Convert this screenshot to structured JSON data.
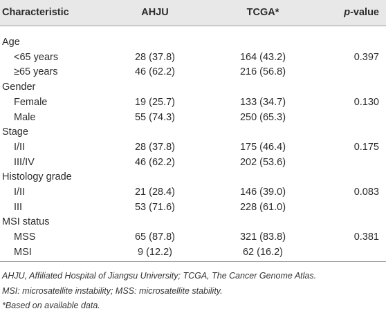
{
  "table": {
    "header": [
      "Characteristic",
      "AHJU",
      "TCGA*",
      "p-value"
    ],
    "groups": [
      {
        "label": "Age",
        "p_value": "0.397",
        "rows": [
          [
            "<65 years",
            "28 (37.8)",
            "164 (43.2)"
          ],
          [
            "≥65 years",
            "46 (62.2)",
            "216 (56.8)"
          ]
        ]
      },
      {
        "label": "Gender",
        "p_value": "0.130",
        "rows": [
          [
            "Female",
            "19 (25.7)",
            "133 (34.7)"
          ],
          [
            "Male",
            "55 (74.3)",
            "250 (65.3)"
          ]
        ]
      },
      {
        "label": "Stage",
        "p_value": "0.175",
        "rows": [
          [
            "I/II",
            "28 (37.8)",
            "175 (46.4)"
          ],
          [
            "III/IV",
            "46 (62.2)",
            "202 (53.6)"
          ]
        ]
      },
      {
        "label": "Histology grade",
        "p_value": "0.083",
        "rows": [
          [
            "I/II",
            "21 (28.4)",
            "146 (39.0)"
          ],
          [
            "III",
            "53 (71.6)",
            "228 (61.0)"
          ]
        ]
      },
      {
        "label": "MSI status",
        "p_value": "0.381",
        "rows": [
          [
            "MSS",
            "65 (87.8)",
            "321 (83.8)"
          ],
          [
            "MSI",
            "9 (12.2)",
            "62 (16.2)"
          ]
        ]
      }
    ],
    "notes": [
      "AHJU, Affiliated Hospital of Jiangsu University; TCGA, The Cancer Genome Atlas.",
      "MSI: microsatellite instability; MSS: microsatellite stability.",
      "*Based on available data."
    ]
  }
}
